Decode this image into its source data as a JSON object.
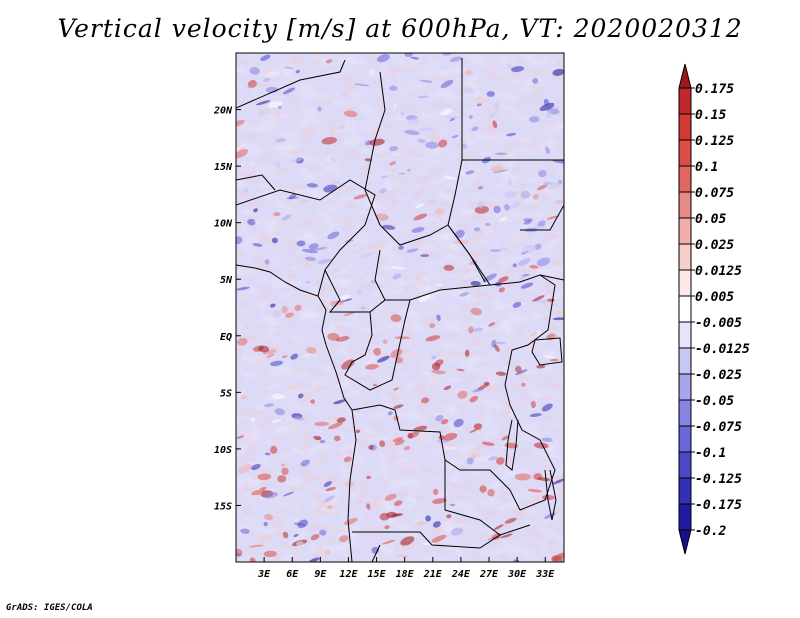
{
  "title": "Vertical velocity [m/s] at 600hPa, VT: 2020020312",
  "credit": "GrADS: IGES/COLA",
  "chart_data": {
    "type": "heatmap",
    "variable": "Vertical velocity",
    "units": "m/s",
    "level": "600hPa",
    "valid_time": "2020020312",
    "lon_range": [
      0,
      35
    ],
    "lat_range": [
      -20,
      25
    ],
    "x_ticks": [
      "3E",
      "6E",
      "9E",
      "12E",
      "15E",
      "18E",
      "21E",
      "24E",
      "27E",
      "30E",
      "33E"
    ],
    "x_tick_values": [
      3,
      6,
      9,
      12,
      15,
      18,
      21,
      24,
      27,
      30,
      33
    ],
    "y_ticks": [
      "20N",
      "15N",
      "10N",
      "5N",
      "EQ",
      "5S",
      "10S",
      "15S"
    ],
    "y_tick_values": [
      20,
      15,
      10,
      5,
      0,
      -5,
      -10,
      -15
    ],
    "colorbar": {
      "labels": [
        "0.175",
        "0.15",
        "0.125",
        "0.1",
        "0.075",
        "0.05",
        "0.025",
        "0.0125",
        "0.005",
        "-0.005",
        "-0.0125",
        "-0.025",
        "-0.05",
        "-0.075",
        "-0.1",
        "-0.125",
        "-0.175",
        "-0.2"
      ],
      "colors": [
        "#a0171b",
        "#c0292c",
        "#d23a36",
        "#dc4e47",
        "#e26761",
        "#ea8a86",
        "#f2aeac",
        "#f8cecb",
        "#fceae8",
        "#ffffff",
        "#e6e6fb",
        "#c8c7f4",
        "#a7a5ec",
        "#8785e3",
        "#6866d8",
        "#4b48c9",
        "#3330b6",
        "#1f1aa0",
        "#1a0f8a"
      ]
    }
  }
}
